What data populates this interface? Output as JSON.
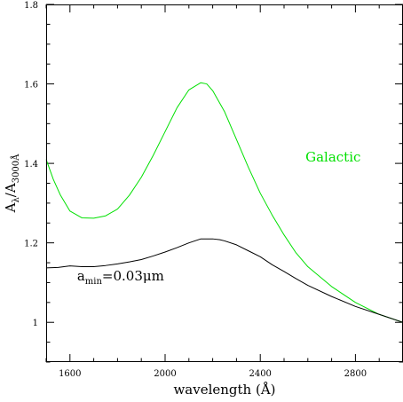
{
  "chart_data": {
    "type": "line",
    "xlabel": "wavelength (Å)",
    "ylabel": {
      "text": "A",
      "sub1": "λ",
      "sep": "/A",
      "sub2": "3000Å"
    },
    "xlim": [
      1500,
      3000
    ],
    "ylim": [
      0.9,
      1.8
    ],
    "x_ticks": [
      1600,
      2000,
      2400,
      2800
    ],
    "x_tick_labels": [
      "1600",
      "2000",
      "2400",
      "2800"
    ],
    "y_ticks": [
      1.0,
      1.2,
      1.4,
      1.6,
      1.8
    ],
    "y_tick_labels": [
      "1",
      "1.2",
      "1.4",
      "1.6",
      "1.8"
    ],
    "x_minor_step": 100,
    "y_minor_step": 0.05,
    "grid": false,
    "series": [
      {
        "name": "Galactic",
        "color": "#00e000",
        "x": [
          1500,
          1530,
          1560,
          1600,
          1650,
          1700,
          1750,
          1800,
          1850,
          1900,
          1950,
          2000,
          2050,
          2100,
          2150,
          2175,
          2200,
          2250,
          2300,
          2350,
          2400,
          2450,
          2500,
          2550,
          2600,
          2700,
          2800,
          2900,
          3000
        ],
        "y": [
          1.41,
          1.36,
          1.32,
          1.28,
          1.263,
          1.262,
          1.268,
          1.285,
          1.32,
          1.365,
          1.42,
          1.48,
          1.54,
          1.585,
          1.603,
          1.6,
          1.583,
          1.53,
          1.46,
          1.39,
          1.325,
          1.27,
          1.22,
          1.175,
          1.14,
          1.09,
          1.05,
          1.02,
          1.0
        ]
      },
      {
        "name": "a_min=0.03μm",
        "color": "#000000",
        "x": [
          1500,
          1550,
          1600,
          1650,
          1700,
          1750,
          1800,
          1850,
          1900,
          1950,
          2000,
          2050,
          2100,
          2150,
          2200,
          2230,
          2250,
          2300,
          2350,
          2400,
          2450,
          2500,
          2550,
          2600,
          2700,
          2800,
          2900,
          3000
        ],
        "y": [
          1.137,
          1.138,
          1.142,
          1.14,
          1.14,
          1.143,
          1.147,
          1.152,
          1.158,
          1.167,
          1.177,
          1.188,
          1.2,
          1.21,
          1.21,
          1.208,
          1.205,
          1.195,
          1.18,
          1.165,
          1.145,
          1.128,
          1.11,
          1.093,
          1.065,
          1.04,
          1.02,
          1.0
        ]
      }
    ],
    "annotations": [
      {
        "text": "Galactic",
        "x": 2590,
        "y": 1.405,
        "color": "#00e000"
      },
      {
        "text": "a",
        "sub": "min",
        "rest": "=0.03μm",
        "x": 1630,
        "y": 1.105,
        "color": "#000000"
      }
    ]
  }
}
